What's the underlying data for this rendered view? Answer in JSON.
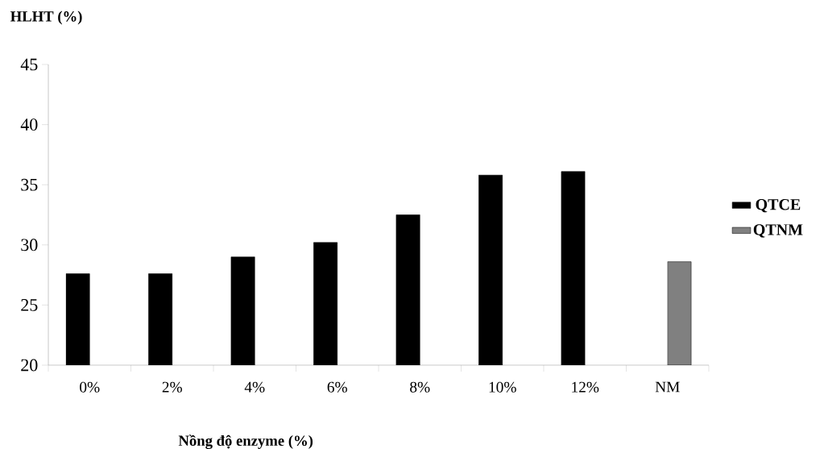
{
  "chart_data": {
    "type": "bar",
    "xlabel": "Nồng độ enzyme (%)",
    "ylabel": "HLHT (%)",
    "categories": [
      "0%",
      "2%",
      "4%",
      "6%",
      "8%",
      "10%",
      "12%",
      "NM"
    ],
    "series": [
      {
        "name": "QTCE",
        "color": "#000000",
        "values": [
          27.6,
          27.6,
          29.0,
          30.2,
          32.5,
          35.8,
          36.1,
          null
        ]
      },
      {
        "name": "QTNM",
        "color": "#808080",
        "values": [
          null,
          null,
          null,
          null,
          null,
          null,
          null,
          28.6
        ]
      }
    ],
    "ylim": [
      20,
      45
    ],
    "yticks": [
      20,
      25,
      30,
      35,
      40,
      45
    ],
    "grid": false,
    "legend": "right"
  }
}
